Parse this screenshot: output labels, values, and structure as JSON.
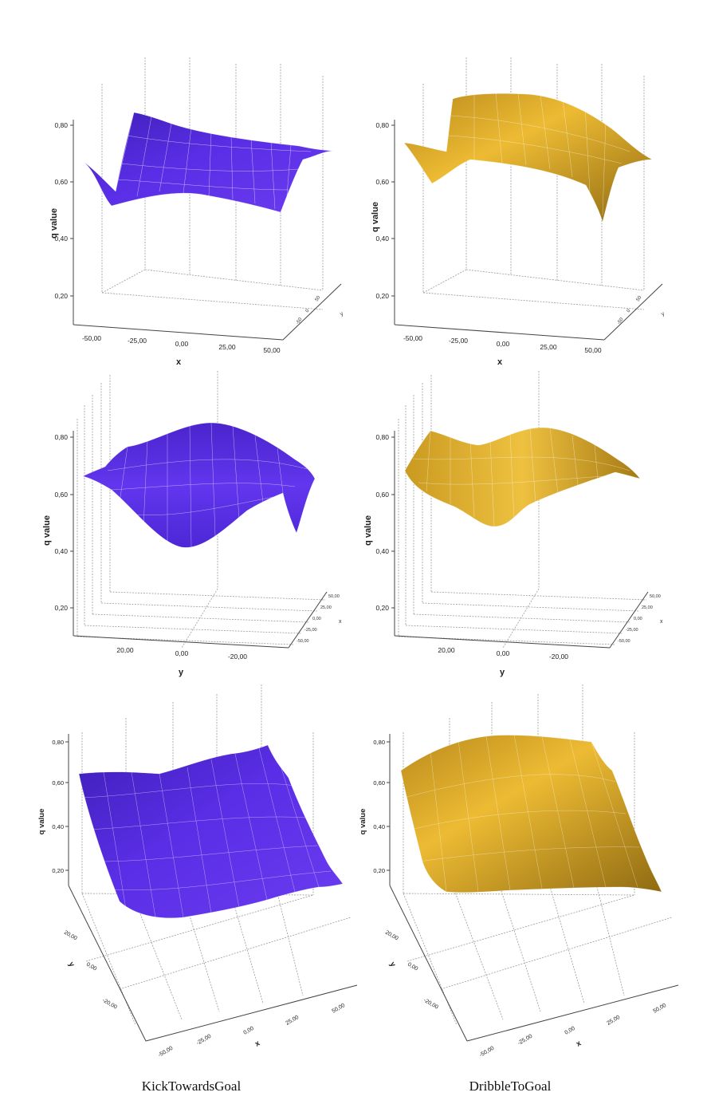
{
  "figure": {
    "column_labels": [
      "KickTowardsGoal",
      "DribbleToGoal"
    ],
    "colors": {
      "kick": "#5a2ee6",
      "dribble": "#e8b328",
      "grid": "#ffffff",
      "axis": "#444444",
      "guide": "#9a9a9a"
    }
  },
  "chart_data": [
    {
      "id": "kick-x",
      "type": "surface",
      "series": [
        {
          "name": "KickTowardsGoal"
        }
      ],
      "xlabel": "x",
      "ylabel": "q value",
      "zlabel": "y",
      "view": "front-x",
      "xticks": [
        "-50,00",
        "-25,00",
        "0,00",
        "25,00",
        "50,00"
      ],
      "yticks": [
        "0,20",
        "0,40",
        "0,60",
        "0,80"
      ],
      "zticks": [
        "-50",
        "0",
        "50"
      ],
      "xlim": [
        -50,
        50
      ],
      "ylim": [
        0.2,
        0.8
      ],
      "x": [
        -50,
        -25,
        0,
        25,
        50
      ],
      "profile_q": [
        0.58,
        0.64,
        0.66,
        0.69,
        0.71
      ]
    },
    {
      "id": "dribble-x",
      "type": "surface",
      "series": [
        {
          "name": "DribbleToGoal"
        }
      ],
      "xlabel": "x",
      "ylabel": "q value",
      "zlabel": "y",
      "view": "front-x",
      "xticks": [
        "-50,00",
        "-25,00",
        "0,00",
        "25,00",
        "50,00"
      ],
      "yticks": [
        "0,20",
        "0,40",
        "0,60",
        "0,80"
      ],
      "zticks": [
        "-50",
        "0",
        "50"
      ],
      "xlim": [
        -50,
        50
      ],
      "ylim": [
        0.2,
        0.8
      ],
      "x": [
        -50,
        -25,
        0,
        25,
        50
      ],
      "profile_q": [
        0.71,
        0.79,
        0.77,
        0.72,
        0.66
      ]
    },
    {
      "id": "kick-y",
      "type": "surface",
      "series": [
        {
          "name": "KickTowardsGoal"
        }
      ],
      "xlabel": "y",
      "ylabel": "q value",
      "zlabel": "x",
      "view": "front-y",
      "xticks": [
        "20,00",
        "0,00",
        "-20,00"
      ],
      "yticks": [
        "0,20",
        "0,40",
        "0,60",
        "0,80"
      ],
      "zticks": [
        "-50,00",
        "-25,00",
        "0,00",
        "25,00",
        "50,00"
      ],
      "xlim": [
        -35,
        35
      ],
      "ylim": [
        0.2,
        0.8
      ],
      "y": [
        30,
        15,
        0,
        -15,
        -30
      ],
      "profile_q": [
        0.66,
        0.56,
        0.43,
        0.56,
        0.68
      ]
    },
    {
      "id": "dribble-y",
      "type": "surface",
      "series": [
        {
          "name": "DribbleToGoal"
        }
      ],
      "xlabel": "y",
      "ylabel": "q value",
      "zlabel": "x",
      "view": "front-y",
      "xticks": [
        "20,00",
        "0,00",
        "-20,00"
      ],
      "yticks": [
        "0,20",
        "0,40",
        "0,60",
        "0,80"
      ],
      "zticks": [
        "-50,00",
        "-25,00",
        "0,00",
        "25,00",
        "50,00"
      ],
      "xlim": [
        -35,
        35
      ],
      "ylim": [
        0.2,
        0.8
      ],
      "y": [
        30,
        15,
        0,
        -15,
        -30
      ],
      "profile_q": [
        0.7,
        0.58,
        0.49,
        0.62,
        0.71
      ]
    },
    {
      "id": "kick-xy",
      "type": "surface",
      "series": [
        {
          "name": "KickTowardsGoal"
        }
      ],
      "xlabel": "x",
      "ylabel": "q value",
      "zlabel": "y",
      "view": "oblique",
      "xticks": [
        "-50,00",
        "-25,00",
        "0,00",
        "25,00",
        "50,00"
      ],
      "yticks": [
        "0,20",
        "0,40",
        "0,60",
        "0,80"
      ],
      "zticks": [
        "20,00",
        "0,00",
        "-20,00"
      ],
      "xlim": [
        -50,
        50
      ],
      "ylim": [
        0.2,
        0.8
      ]
    },
    {
      "id": "dribble-xy",
      "type": "surface",
      "series": [
        {
          "name": "DribbleToGoal"
        }
      ],
      "xlabel": "x",
      "ylabel": "q value",
      "zlabel": "y",
      "view": "oblique",
      "xticks": [
        "-50,00",
        "-25,00",
        "0,00",
        "25,00",
        "50,00"
      ],
      "yticks": [
        "0,20",
        "0,40",
        "0,60",
        "0,80"
      ],
      "zticks": [
        "20,00",
        "0,00",
        "-20,00"
      ],
      "xlim": [
        -50,
        50
      ],
      "ylim": [
        0.2,
        0.8
      ]
    }
  ]
}
